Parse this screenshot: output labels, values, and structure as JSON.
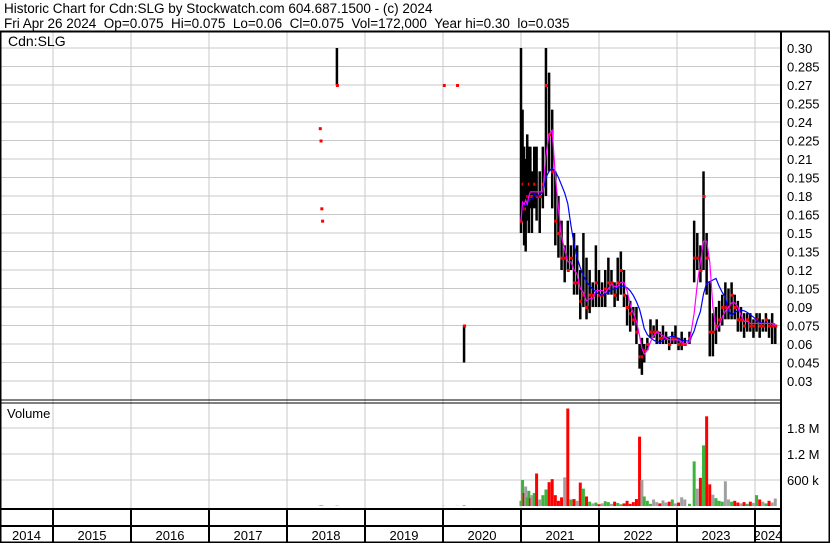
{
  "header": {
    "title": "Historic Chart for Cdn:SLG by Stockwatch.com 604.687.1500 - (c) 2024",
    "quote": "Fri Apr 26 2024  Op=0.075  Hi=0.075  Lo=0.06  Cl=0.075  Vol=172,000  Year hi=0.30  lo=0.035"
  },
  "chart_data": {
    "type": "ohlc",
    "symbol_label": "Cdn:SLG",
    "volume_label": "Volume",
    "colors": {
      "bar": "#000000",
      "close_tick": "#ff0000",
      "ma_short": "#ff00ff",
      "ma_long": "#0000ff",
      "vol_up": "#3cb43c",
      "vol_down": "#ff0000",
      "vol_flat": "#a0a0a0",
      "grid": "#c8c8c8"
    },
    "price_axis": {
      "min": 0.03,
      "max": 0.3,
      "step": 0.015,
      "ticks": [
        "0.30",
        "0.285",
        "0.27",
        "0.255",
        "0.24",
        "0.225",
        "0.21",
        "0.195",
        "0.18",
        "0.165",
        "0.15",
        "0.135",
        "0.12",
        "0.105",
        "0.09",
        "0.075",
        "0.06",
        "0.045",
        "0.03"
      ]
    },
    "volume_axis": {
      "ticks": [
        {
          "value": 1800000,
          "label": "1.8 M"
        },
        {
          "value": 1200000,
          "label": "1.2 M"
        },
        {
          "value": 600000,
          "label": "600 k"
        }
      ]
    },
    "years": [
      "2014",
      "2015",
      "2016",
      "2017",
      "2018",
      "2019",
      "2020",
      "2021",
      "2022",
      "2023",
      "2024"
    ],
    "bars_columns": [
      "year",
      "high",
      "low",
      "close",
      "volume"
    ],
    "bars": [
      [
        2018.42,
        0.235,
        0.235,
        0.235,
        5000
      ],
      [
        2018.43,
        0.225,
        0.225,
        0.225,
        5000
      ],
      [
        2018.44,
        0.17,
        0.17,
        0.17,
        5000
      ],
      [
        2018.45,
        0.16,
        0.16,
        0.16,
        5000
      ],
      [
        2018.64,
        0.3,
        0.27,
        0.27,
        8000
      ],
      [
        2020.01,
        0.27,
        0.27,
        0.27,
        5000
      ],
      [
        2020.18,
        0.27,
        0.27,
        0.27,
        5000
      ],
      [
        2020.27,
        0.075,
        0.045,
        0.075,
        10000
      ],
      [
        2021.0,
        0.3,
        0.15,
        0.16,
        120000
      ],
      [
        2021.02,
        0.25,
        0.16,
        0.19,
        600000
      ],
      [
        2021.04,
        0.22,
        0.14,
        0.17,
        300000
      ],
      [
        2021.06,
        0.21,
        0.135,
        0.17,
        450000
      ],
      [
        2021.08,
        0.23,
        0.16,
        0.18,
        200000
      ],
      [
        2021.1,
        0.22,
        0.15,
        0.19,
        350000
      ],
      [
        2021.12,
        0.22,
        0.17,
        0.18,
        180000
      ],
      [
        2021.14,
        0.2,
        0.15,
        0.18,
        250000
      ],
      [
        2021.17,
        0.22,
        0.17,
        0.19,
        300000
      ],
      [
        2021.2,
        0.22,
        0.16,
        0.18,
        750000
      ],
      [
        2021.24,
        0.2,
        0.15,
        0.18,
        150000
      ],
      [
        2021.28,
        0.22,
        0.17,
        0.19,
        250000
      ],
      [
        2021.32,
        0.3,
        0.18,
        0.27,
        380000
      ],
      [
        2021.36,
        0.28,
        0.2,
        0.23,
        550000
      ],
      [
        2021.4,
        0.25,
        0.17,
        0.2,
        620000
      ],
      [
        2021.44,
        0.2,
        0.14,
        0.16,
        250000
      ],
      [
        2021.48,
        0.18,
        0.13,
        0.15,
        120000
      ],
      [
        2021.52,
        0.16,
        0.12,
        0.13,
        200000
      ],
      [
        2021.56,
        0.14,
        0.11,
        0.13,
        660000
      ],
      [
        2021.6,
        0.16,
        0.12,
        0.12,
        2250000
      ],
      [
        2021.64,
        0.14,
        0.12,
        0.13,
        150000
      ],
      [
        2021.68,
        0.15,
        0.1,
        0.11,
        160000
      ],
      [
        2021.72,
        0.14,
        0.1,
        0.11,
        120000
      ],
      [
        2021.76,
        0.12,
        0.08,
        0.095,
        540000
      ],
      [
        2021.8,
        0.15,
        0.09,
        0.1,
        400000
      ],
      [
        2021.84,
        0.13,
        0.08,
        0.09,
        220000
      ],
      [
        2021.88,
        0.12,
        0.085,
        0.1,
        100000
      ],
      [
        2021.92,
        0.11,
        0.09,
        0.1,
        60000
      ],
      [
        2021.96,
        0.14,
        0.09,
        0.11,
        80000
      ],
      [
        2022.0,
        0.12,
        0.09,
        0.1,
        40000
      ],
      [
        2022.04,
        0.11,
        0.09,
        0.1,
        60000
      ],
      [
        2022.08,
        0.12,
        0.09,
        0.105,
        110000
      ],
      [
        2022.12,
        0.13,
        0.1,
        0.11,
        90000
      ],
      [
        2022.16,
        0.12,
        0.1,
        0.11,
        50000
      ],
      [
        2022.2,
        0.11,
        0.09,
        0.1,
        100000
      ],
      [
        2022.24,
        0.13,
        0.095,
        0.11,
        70000
      ],
      [
        2022.28,
        0.135,
        0.1,
        0.12,
        40000
      ],
      [
        2022.32,
        0.12,
        0.09,
        0.1,
        60000
      ],
      [
        2022.36,
        0.1,
        0.075,
        0.09,
        120000
      ],
      [
        2022.4,
        0.095,
        0.07,
        0.085,
        50000
      ],
      [
        2022.44,
        0.09,
        0.075,
        0.08,
        90000
      ],
      [
        2022.48,
        0.09,
        0.06,
        0.07,
        160000
      ],
      [
        2022.52,
        0.06,
        0.04,
        0.05,
        1600000
      ],
      [
        2022.55,
        0.065,
        0.035,
        0.05,
        600000
      ],
      [
        2022.58,
        0.06,
        0.045,
        0.055,
        220000
      ],
      [
        2022.62,
        0.065,
        0.055,
        0.06,
        120000
      ],
      [
        2022.66,
        0.08,
        0.065,
        0.07,
        50000
      ],
      [
        2022.7,
        0.075,
        0.065,
        0.07,
        150000
      ],
      [
        2022.74,
        0.08,
        0.06,
        0.07,
        90000
      ],
      [
        2022.78,
        0.07,
        0.06,
        0.065,
        60000
      ],
      [
        2022.82,
        0.075,
        0.06,
        0.065,
        130000
      ],
      [
        2022.86,
        0.07,
        0.06,
        0.065,
        80000
      ],
      [
        2022.9,
        0.065,
        0.055,
        0.06,
        100000
      ],
      [
        2022.94,
        0.07,
        0.06,
        0.065,
        150000
      ],
      [
        2022.98,
        0.075,
        0.06,
        0.065,
        60000
      ],
      [
        2023.02,
        0.065,
        0.055,
        0.06,
        80000
      ],
      [
        2023.06,
        0.07,
        0.055,
        0.06,
        200000
      ],
      [
        2023.1,
        0.065,
        0.06,
        0.06,
        150000
      ],
      [
        2023.16,
        0.07,
        0.06,
        0.065,
        50000
      ],
      [
        2023.22,
        0.16,
        0.11,
        0.13,
        1030000
      ],
      [
        2023.26,
        0.15,
        0.12,
        0.13,
        400000
      ],
      [
        2023.3,
        0.14,
        0.11,
        0.12,
        650000
      ],
      [
        2023.34,
        0.2,
        0.12,
        0.18,
        1400000
      ],
      [
        2023.38,
        0.15,
        0.1,
        0.13,
        2070000
      ],
      [
        2023.42,
        0.11,
        0.05,
        0.07,
        500000
      ],
      [
        2023.46,
        0.085,
        0.05,
        0.07,
        260000
      ],
      [
        2023.5,
        0.09,
        0.06,
        0.075,
        180000
      ],
      [
        2023.54,
        0.095,
        0.07,
        0.08,
        120000
      ],
      [
        2023.58,
        0.1,
        0.075,
        0.09,
        100000
      ],
      [
        2023.62,
        0.11,
        0.08,
        0.09,
        570000
      ],
      [
        2023.66,
        0.105,
        0.08,
        0.09,
        150000
      ],
      [
        2023.7,
        0.11,
        0.08,
        0.1,
        100000
      ],
      [
        2023.74,
        0.1,
        0.08,
        0.09,
        120000
      ],
      [
        2023.78,
        0.095,
        0.07,
        0.08,
        80000
      ],
      [
        2023.82,
        0.09,
        0.07,
        0.08,
        60000
      ],
      [
        2023.86,
        0.085,
        0.065,
        0.075,
        90000
      ],
      [
        2023.9,
        0.085,
        0.07,
        0.08,
        50000
      ],
      [
        2023.94,
        0.085,
        0.07,
        0.075,
        100000
      ],
      [
        2023.98,
        0.08,
        0.065,
        0.075,
        70000
      ],
      [
        2024.02,
        0.085,
        0.07,
        0.08,
        250000
      ],
      [
        2024.06,
        0.085,
        0.065,
        0.075,
        150000
      ],
      [
        2024.1,
        0.08,
        0.07,
        0.075,
        100000
      ],
      [
        2024.14,
        0.085,
        0.07,
        0.08,
        60000
      ],
      [
        2024.18,
        0.08,
        0.065,
        0.075,
        120000
      ],
      [
        2024.22,
        0.085,
        0.06,
        0.075,
        80000
      ],
      [
        2024.26,
        0.075,
        0.06,
        0.075,
        172000
      ]
    ]
  }
}
